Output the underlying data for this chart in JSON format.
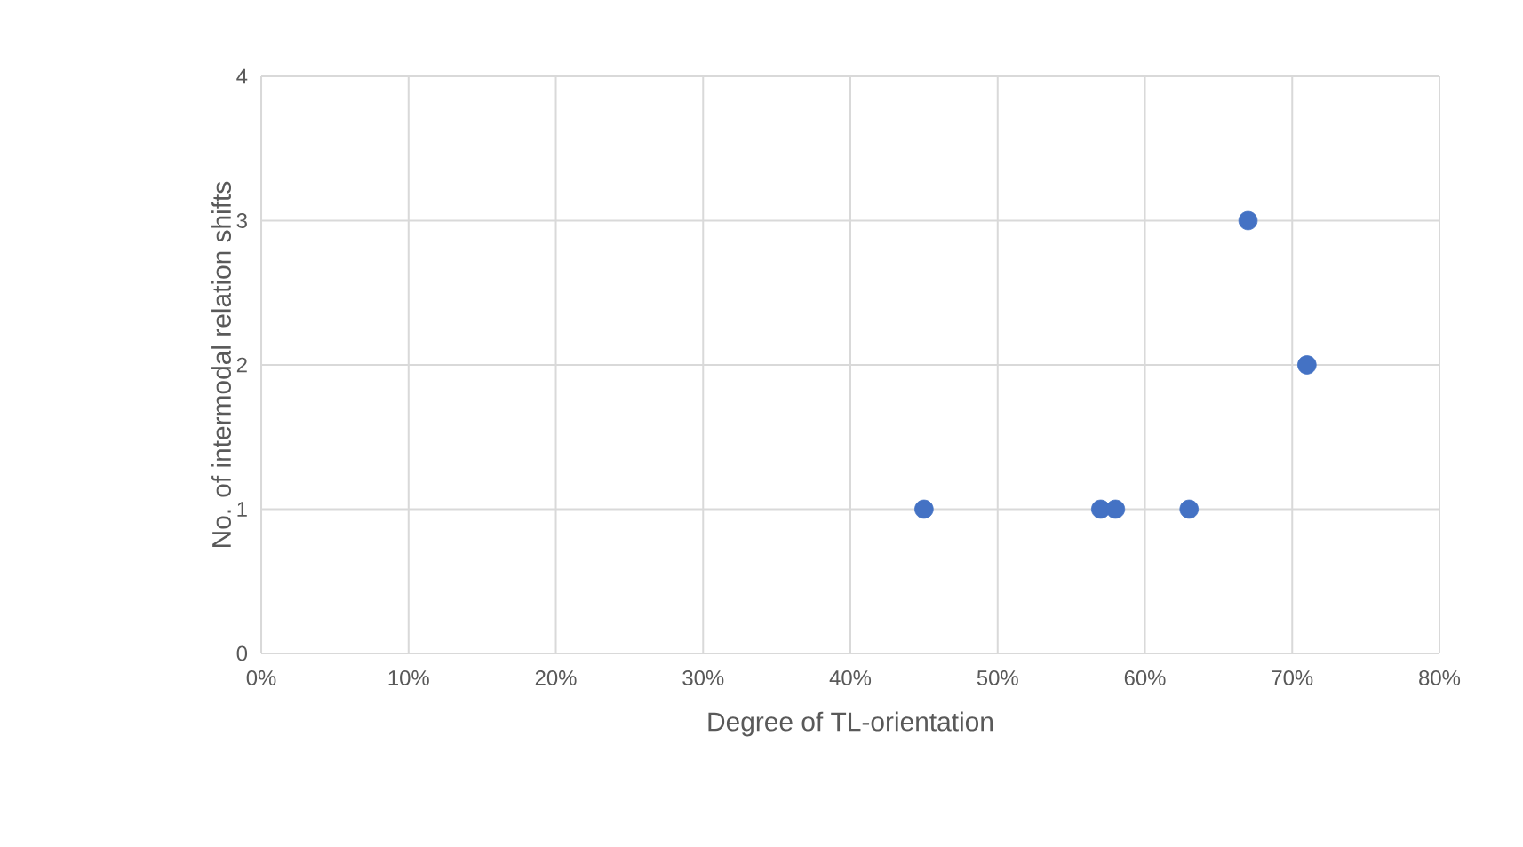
{
  "chart_data": {
    "type": "scatter",
    "xlabel": "Degree of TL-orientation",
    "ylabel": "No. of intermodal relation shifts",
    "x": [
      45,
      57,
      58,
      63,
      67,
      71
    ],
    "values": [
      1,
      1,
      1,
      1,
      3,
      2
    ],
    "color": "#4472c4",
    "marker": "circle",
    "xlim": [
      0,
      80
    ],
    "ylim": [
      0,
      4
    ],
    "xticks": [
      {
        "value": 0,
        "label": "0%"
      },
      {
        "value": 10,
        "label": "10%"
      },
      {
        "value": 20,
        "label": "20%"
      },
      {
        "value": 30,
        "label": "30%"
      },
      {
        "value": 40,
        "label": "40%"
      },
      {
        "value": 50,
        "label": "50%"
      },
      {
        "value": 60,
        "label": "60%"
      },
      {
        "value": 70,
        "label": "70%"
      },
      {
        "value": 80,
        "label": "80%"
      }
    ],
    "yticks": [
      0,
      1,
      2,
      3,
      4
    ],
    "grid": true
  }
}
